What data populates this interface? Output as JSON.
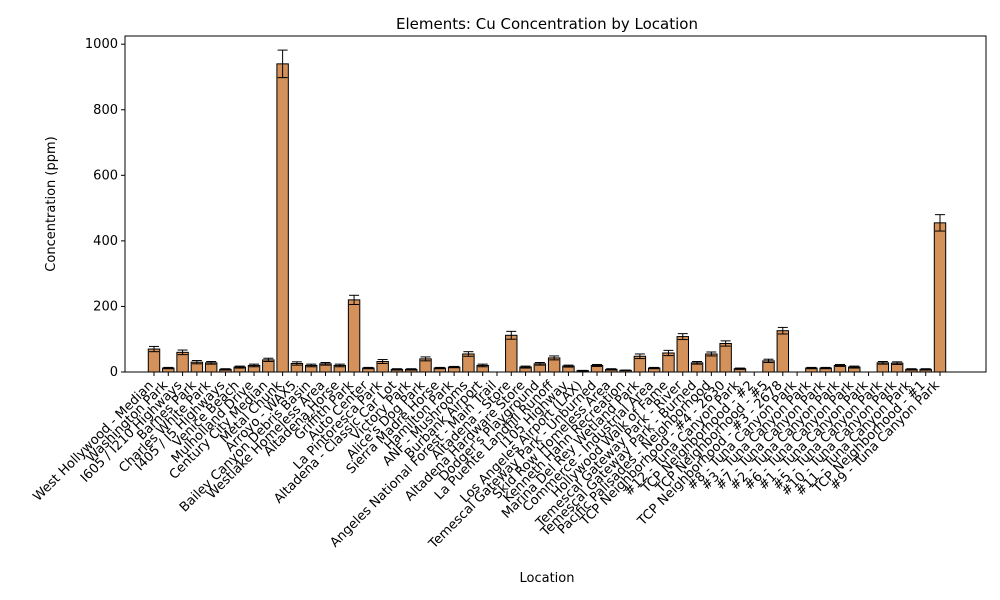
{
  "chart_data": {
    "type": "bar",
    "title": "Elements: Cu Concentration by Location",
    "xlabel": "Location",
    "ylabel": "Concentration (ppm)",
    "ylim": [
      0,
      1025
    ],
    "yticks": [
      0,
      200,
      400,
      600,
      800,
      1000
    ],
    "grid": false,
    "bar_color": "#d4915a",
    "bar_edge_color": "#000000",
    "categories": [
      "West Hollywood - Median",
      "Washington Park",
      "I605 / I210 Highways",
      "Barnes Park",
      "Charles White Park",
      "I405 / I5 Highways",
      "Venice Beach",
      "Mulholland Drive",
      "Century City Median",
      "Metal Chunk",
      "Arroyo - WAX5",
      "Bailey Canyon Debris Basin",
      "Westlake Homeless Area",
      "Altadena Horse",
      "Griffith Park",
      "Auto Center",
      "La Pintoresca Park",
      "Altadena - Classic Car Lot",
      "Victory Park",
      "Alice's Dog Park",
      "Sierra Madre Horse",
      "Hamilton Park",
      "ANF - Mushrooms",
      "Burbank Airport",
      "Angeles National Forest - Main Trail",
      "Altadena - Store",
      "Altadena Hardware Store",
      "Dodger's Playground",
      "La Puente Landfill Runoff",
      "I105 Highway",
      "Los Angeles Airport (LAX)",
      "Temescal Gateway Park - Unburned",
      "Skid Row Homeless Area",
      "Kenneth Hahn Recreation",
      "Marina Del Rey Wetland Park",
      "Commerce - Industrial Area",
      "Hollywood Walk of Fame",
      "Temescal Gateway Park - River",
      "Temescal Gateway Park - Burned",
      "Pacific Palisades - Neighborhood",
      "TCP Neighborhood - #4 - 2630",
      "#12 - Tuna Canyon Park",
      "TCP Neighborhood - #2",
      "TCP Neighborhood - #5",
      "TCP Neighborhood - #3 - 2678",
      "#8 - Tuna Canyon Park",
      "#3 - Tuna Canyon Park",
      "#7 - Tuna Canyon Park",
      "#2 - Tuna Canyon Park",
      "#6 - Tuna Canyon Park",
      "#1 - Tuna Canyon Park",
      "#5 - Tuna Canyon Park",
      "#10 - Tuna Canyon Park",
      "#11 - Tuna Canyon Park",
      "TCP Neighborhood - #1",
      "#9 - Tuna Canyon Park"
    ],
    "values": [
      70,
      12,
      60,
      30,
      28,
      8,
      15,
      20,
      37,
      940,
      26,
      20,
      25,
      20,
      220,
      12,
      32,
      8,
      8,
      40,
      12,
      15,
      55,
      20,
      0,
      112,
      15,
      25,
      43,
      18,
      4,
      20,
      8,
      5,
      48,
      12,
      58,
      108,
      28,
      55,
      87,
      10,
      0,
      34,
      126,
      0,
      12,
      12,
      20,
      15,
      0,
      28,
      27,
      8,
      8,
      455
    ],
    "errors": [
      8,
      2,
      7,
      5,
      4,
      2,
      3,
      4,
      5,
      42,
      5,
      4,
      4,
      4,
      14,
      2,
      6,
      2,
      2,
      6,
      2,
      2,
      7,
      4,
      0,
      12,
      3,
      4,
      6,
      3,
      1,
      3,
      2,
      1,
      7,
      2,
      8,
      9,
      4,
      6,
      8,
      2,
      0,
      5,
      10,
      0,
      2,
      2,
      3,
      3,
      0,
      4,
      4,
      2,
      2,
      25
    ]
  }
}
